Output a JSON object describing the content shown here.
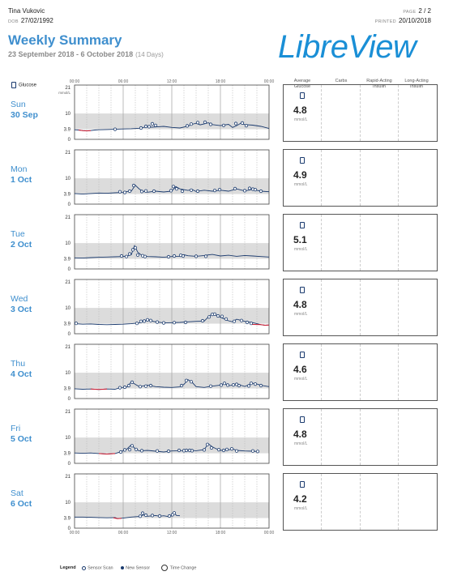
{
  "header": {
    "patient_name": "Tina Vukovic",
    "dob_label": "DOB",
    "dob": "27/02/1992",
    "page_label": "PAGE",
    "page": "2 / 2",
    "printed_label": "PRINTED",
    "printed": "20/10/2018",
    "title": "Weekly Summary",
    "date_range": "23 September 2018 - 6 October 2018",
    "days": "(14 Days)",
    "logo": "LibreView"
  },
  "columns": {
    "glucose": "Glucose",
    "avg": [
      "Average",
      "Glucose"
    ],
    "carbs": "Carbs",
    "rapid": [
      "Rapid-Acting",
      "Insulin"
    ],
    "long": [
      "Long-Acting",
      "Insulin"
    ]
  },
  "axis": {
    "y_top": "21",
    "y_unit": "mmol/L",
    "y_high": "10",
    "y_low": "3.9",
    "y_zero": "0",
    "x_ticks": [
      "00:00",
      "06:00",
      "12:00",
      "18:00",
      "00:00"
    ]
  },
  "colors": {
    "line": "#1a3a6e",
    "low": "#d0182c",
    "target": "#dcdcdc",
    "accent": "#3f8fce"
  },
  "days": [
    {
      "day": "Sun",
      "date": "30 Sep",
      "avg": "4.8",
      "unit": "mmol/L",
      "curve": [
        [
          0,
          3.7
        ],
        [
          0.5,
          3.6
        ],
        [
          1,
          3.4
        ],
        [
          1.5,
          3.3
        ],
        [
          2,
          3.4
        ],
        [
          2.5,
          3.6
        ],
        [
          3,
          3.7
        ],
        [
          4,
          3.8
        ],
        [
          5,
          3.9
        ],
        [
          6,
          4.0
        ],
        [
          7,
          4.1
        ],
        [
          8,
          4.3
        ],
        [
          8.5,
          4.6
        ],
        [
          9,
          4.9
        ],
        [
          9.5,
          4.7
        ],
        [
          10,
          4.8
        ],
        [
          11,
          5.0
        ],
        [
          12,
          4.6
        ],
        [
          13,
          4.4
        ],
        [
          14,
          5.1
        ],
        [
          14.5,
          5.8
        ],
        [
          15,
          6.2
        ],
        [
          15.5,
          5.6
        ],
        [
          16,
          6.0
        ],
        [
          16.5,
          6.4
        ],
        [
          17,
          5.7
        ],
        [
          18,
          5.3
        ],
        [
          19,
          5.8
        ],
        [
          19.5,
          4.6
        ],
        [
          20,
          5.3
        ],
        [
          20.5,
          6.2
        ],
        [
          21,
          5.7
        ],
        [
          22,
          5.5
        ],
        [
          23,
          5.0
        ],
        [
          24,
          4.2
        ]
      ],
      "low_end": 2,
      "scans": [
        [
          5,
          3.9
        ],
        [
          8.2,
          4.4
        ],
        [
          8.8,
          5.0
        ],
        [
          9.2,
          4.9
        ],
        [
          9.6,
          6.0
        ],
        [
          10,
          5.4
        ],
        [
          13.9,
          5.2
        ],
        [
          14.4,
          5.9
        ],
        [
          15.2,
          6.5
        ],
        [
          16.1,
          6.6
        ],
        [
          16.8,
          5.8
        ],
        [
          18.4,
          5.4
        ],
        [
          19.9,
          6.1
        ],
        [
          20.7,
          6.3
        ],
        [
          21.2,
          5.3
        ]
      ]
    },
    {
      "day": "Mon",
      "date": "1 Oct",
      "avg": "4.9",
      "unit": "mmol/L",
      "curve": [
        [
          0,
          4.1
        ],
        [
          1,
          3.9
        ],
        [
          2,
          4.1
        ],
        [
          3,
          4.3
        ],
        [
          4,
          4.2
        ],
        [
          5,
          4.4
        ],
        [
          6,
          4.5
        ],
        [
          6.5,
          4.9
        ],
        [
          7,
          5.0
        ],
        [
          7.5,
          7.3
        ],
        [
          8,
          5.8
        ],
        [
          8.5,
          4.9
        ],
        [
          9,
          4.6
        ],
        [
          10,
          5.0
        ],
        [
          11,
          4.7
        ],
        [
          12,
          5.0
        ],
        [
          12.5,
          6.8
        ],
        [
          13,
          5.9
        ],
        [
          14,
          5.3
        ],
        [
          14.5,
          5.7
        ],
        [
          15,
          4.9
        ],
        [
          16,
          5.4
        ],
        [
          17,
          5.0
        ],
        [
          18,
          5.4
        ],
        [
          19,
          5.0
        ],
        [
          20,
          5.9
        ],
        [
          21,
          5.1
        ],
        [
          22,
          5.7
        ],
        [
          23,
          5.0
        ],
        [
          24,
          4.8
        ]
      ],
      "low_end": 0,
      "scans": [
        [
          5.6,
          4.8
        ],
        [
          6.2,
          4.5
        ],
        [
          6.8,
          5.0
        ],
        [
          7.3,
          7.2
        ],
        [
          8.3,
          4.9
        ],
        [
          8.8,
          5.1
        ],
        [
          9.8,
          5.0
        ],
        [
          11.9,
          5.2
        ],
        [
          12.2,
          6.8
        ],
        [
          12.6,
          5.9
        ],
        [
          13.3,
          5.0
        ],
        [
          14.4,
          5.4
        ],
        [
          15.2,
          5.0
        ],
        [
          17.3,
          5.3
        ],
        [
          17.9,
          5.6
        ],
        [
          19.8,
          6.0
        ],
        [
          21.0,
          5.2
        ],
        [
          21.6,
          6.1
        ],
        [
          22.0,
          5.8
        ],
        [
          22.3,
          5.6
        ],
        [
          23.0,
          5.0
        ]
      ]
    },
    {
      "day": "Tue",
      "date": "2 Oct",
      "avg": "5.1",
      "unit": "mmol/L",
      "curve": [
        [
          0,
          4.3
        ],
        [
          1,
          4.2
        ],
        [
          2,
          4.4
        ],
        [
          3,
          4.5
        ],
        [
          4,
          4.6
        ],
        [
          5,
          4.7
        ],
        [
          6,
          4.8
        ],
        [
          6.5,
          5.0
        ],
        [
          7,
          5.5
        ],
        [
          7.4,
          9.0
        ],
        [
          7.8,
          6.5
        ],
        [
          8.2,
          5.5
        ],
        [
          8.6,
          5.0
        ],
        [
          9,
          4.8
        ],
        [
          10,
          4.7
        ],
        [
          11,
          4.5
        ],
        [
          12,
          4.8
        ],
        [
          13,
          4.9
        ],
        [
          13.5,
          5.5
        ],
        [
          14,
          5.1
        ],
        [
          15,
          4.9
        ],
        [
          16,
          5.2
        ],
        [
          17,
          5.6
        ],
        [
          18,
          5.0
        ],
        [
          19,
          5.3
        ],
        [
          20,
          4.9
        ],
        [
          21,
          5.2
        ],
        [
          22,
          5.0
        ],
        [
          23,
          4.8
        ],
        [
          24,
          4.6
        ]
      ],
      "low_end": 0,
      "scans": [
        [
          5.8,
          5.0
        ],
        [
          6.4,
          4.8
        ],
        [
          6.8,
          5.8
        ],
        [
          7.2,
          7.4
        ],
        [
          7.5,
          8.2
        ],
        [
          7.8,
          5.4
        ],
        [
          8.4,
          5.1
        ],
        [
          8.7,
          4.8
        ],
        [
          11.6,
          4.7
        ],
        [
          12.3,
          5.0
        ],
        [
          13.1,
          5.3
        ],
        [
          13.4,
          5.0
        ],
        [
          15.0,
          4.9
        ],
        [
          16.2,
          4.9
        ]
      ]
    },
    {
      "day": "Wed",
      "date": "3 Oct",
      "avg": "4.8",
      "unit": "mmol/L",
      "curve": [
        [
          0,
          3.9
        ],
        [
          1,
          3.7
        ],
        [
          2,
          3.8
        ],
        [
          3,
          3.6
        ],
        [
          4,
          3.5
        ],
        [
          5,
          3.6
        ],
        [
          6,
          3.7
        ],
        [
          7,
          3.9
        ],
        [
          8,
          4.2
        ],
        [
          8.5,
          4.7
        ],
        [
          9,
          5.2
        ],
        [
          10,
          4.6
        ],
        [
          11,
          4.2
        ],
        [
          12,
          4.3
        ],
        [
          13,
          4.4
        ],
        [
          14,
          4.6
        ],
        [
          15,
          4.8
        ],
        [
          16,
          4.9
        ],
        [
          16.5,
          6.5
        ],
        [
          17,
          7.7
        ],
        [
          17.5,
          7.1
        ],
        [
          18,
          6.4
        ],
        [
          18.5,
          5.7
        ],
        [
          19,
          5.0
        ],
        [
          19.5,
          4.6
        ],
        [
          20,
          5.6
        ],
        [
          21,
          4.8
        ],
        [
          22,
          4.3
        ],
        [
          23,
          3.5
        ],
        [
          23.5,
          3.3
        ],
        [
          24,
          3.4
        ]
      ],
      "low_end": 0,
      "scans": [
        [
          0.2,
          4.0
        ],
        [
          7.7,
          4.0
        ],
        [
          8.2,
          4.8
        ],
        [
          8.6,
          4.9
        ],
        [
          9.0,
          5.4
        ],
        [
          9.4,
          5.1
        ],
        [
          10.2,
          4.5
        ],
        [
          11.0,
          4.2
        ],
        [
          12.3,
          4.3
        ],
        [
          13.7,
          4.4
        ],
        [
          15.8,
          5.0
        ],
        [
          16.6,
          6.5
        ],
        [
          17.0,
          7.5
        ],
        [
          17.3,
          7.6
        ],
        [
          17.7,
          6.9
        ],
        [
          18.2,
          6.7
        ],
        [
          18.7,
          5.7
        ],
        [
          19.7,
          4.8
        ],
        [
          20.6,
          5.1
        ],
        [
          21.3,
          4.4
        ],
        [
          21.8,
          4.0
        ]
      ],
      "low2": [
        [
          21.9,
          3.6
        ],
        [
          23,
          3.5
        ],
        [
          23.5,
          3.3
        ],
        [
          24,
          3.4
        ]
      ]
    },
    {
      "day": "Thu",
      "date": "4 Oct",
      "avg": "4.6",
      "unit": "mmol/L",
      "curve": [
        [
          0,
          3.8
        ],
        [
          1,
          3.6
        ],
        [
          2,
          3.7
        ],
        [
          3,
          3.5
        ],
        [
          4,
          3.7
        ],
        [
          5,
          3.6
        ],
        [
          5.5,
          4.1
        ],
        [
          6,
          4.2
        ],
        [
          6.5,
          4.5
        ],
        [
          7,
          6.5
        ],
        [
          7.5,
          5.5
        ],
        [
          8,
          4.6
        ],
        [
          9,
          5.2
        ],
        [
          10,
          4.6
        ],
        [
          11,
          4.4
        ],
        [
          12,
          4.3
        ],
        [
          13,
          4.5
        ],
        [
          13.5,
          5.5
        ],
        [
          14,
          7.3
        ],
        [
          14.5,
          6.3
        ],
        [
          15,
          4.6
        ],
        [
          16,
          4.3
        ],
        [
          17,
          4.8
        ],
        [
          18,
          5.2
        ],
        [
          18.5,
          5.8
        ],
        [
          19,
          4.9
        ],
        [
          20,
          5.6
        ],
        [
          21,
          4.7
        ],
        [
          22,
          5.9
        ],
        [
          22.5,
          5.6
        ],
        [
          23,
          5.1
        ],
        [
          24,
          4.6
        ]
      ],
      "low_end": 4,
      "scans": [
        [
          5.6,
          4.2
        ],
        [
          6.2,
          4.4
        ],
        [
          6.7,
          5.0
        ],
        [
          7.1,
          6.3
        ],
        [
          8.1,
          4.6
        ],
        [
          8.8,
          4.8
        ],
        [
          9.4,
          5.0
        ],
        [
          13.2,
          5.0
        ],
        [
          13.8,
          7.0
        ],
        [
          14.4,
          6.5
        ],
        [
          16.8,
          4.8
        ],
        [
          18.1,
          5.2
        ],
        [
          18.5,
          5.9
        ],
        [
          18.9,
          5.2
        ],
        [
          19.6,
          5.3
        ],
        [
          20.0,
          5.5
        ],
        [
          20.3,
          5.0
        ],
        [
          21.5,
          4.9
        ],
        [
          21.8,
          5.9
        ],
        [
          22.3,
          5.6
        ],
        [
          23.0,
          5.0
        ]
      ]
    },
    {
      "day": "Fri",
      "date": "5 Oct",
      "avg": "4.8",
      "unit": "mmol/L",
      "curve": [
        [
          0,
          4.0
        ],
        [
          1,
          3.9
        ],
        [
          2,
          4.0
        ],
        [
          3,
          3.8
        ],
        [
          4,
          3.6
        ],
        [
          5,
          3.8
        ],
        [
          5.5,
          4.3
        ],
        [
          6,
          4.9
        ],
        [
          6.5,
          5.6
        ],
        [
          7,
          7.2
        ],
        [
          7.5,
          5.6
        ],
        [
          8,
          4.8
        ],
        [
          9,
          5.0
        ],
        [
          10,
          4.7
        ],
        [
          11,
          4.4
        ],
        [
          12,
          4.8
        ],
        [
          13,
          4.9
        ],
        [
          14,
          5.1
        ],
        [
          15,
          4.9
        ],
        [
          16,
          5.3
        ],
        [
          16.5,
          7.6
        ],
        [
          17,
          6.4
        ],
        [
          17.5,
          5.6
        ],
        [
          18,
          5.0
        ],
        [
          19,
          5.2
        ],
        [
          19.5,
          5.6
        ],
        [
          20,
          5.0
        ],
        [
          21,
          4.8
        ],
        [
          22,
          4.7
        ],
        [
          22.8,
          4.5
        ]
      ],
      "low_end": 5,
      "scans": [
        [
          5.7,
          4.4
        ],
        [
          6.2,
          5.2
        ],
        [
          6.8,
          5.3
        ],
        [
          7.1,
          6.8
        ],
        [
          7.6,
          5.4
        ],
        [
          8.3,
          4.9
        ],
        [
          10.2,
          4.8
        ],
        [
          11.6,
          4.7
        ],
        [
          12.9,
          5.0
        ],
        [
          13.5,
          4.9
        ],
        [
          13.8,
          5.0
        ],
        [
          14.2,
          5.0
        ],
        [
          14.5,
          4.9
        ],
        [
          16.0,
          5.2
        ],
        [
          16.4,
          7.3
        ],
        [
          16.9,
          6.0
        ],
        [
          17.8,
          5.3
        ],
        [
          18.4,
          5.0
        ],
        [
          18.8,
          5.4
        ],
        [
          19.4,
          5.6
        ],
        [
          20.0,
          4.8
        ],
        [
          22.0,
          4.8
        ],
        [
          22.6,
          4.6
        ]
      ]
    },
    {
      "day": "Sat",
      "date": "6 Oct",
      "avg": "4.2",
      "unit": "mmol/L",
      "curve": [
        [
          0,
          4.3
        ],
        [
          1,
          4.3
        ],
        [
          2,
          4.2
        ],
        [
          3,
          4.1
        ],
        [
          4,
          4.0
        ],
        [
          5,
          4.1
        ],
        [
          5.3,
          3.7
        ],
        [
          6,
          3.9
        ],
        [
          7,
          4.3
        ],
        [
          8,
          4.5
        ],
        [
          8.5,
          5.1
        ],
        [
          9,
          4.6
        ],
        [
          10,
          4.9
        ],
        [
          10.5,
          4.6
        ],
        [
          11,
          4.8
        ],
        [
          11.5,
          4.5
        ],
        [
          12,
          4.7
        ],
        [
          12.3,
          5.8
        ],
        [
          12.6,
          4.9
        ],
        [
          13,
          4.8
        ]
      ],
      "low_end": 0,
      "scans": [
        [
          8.1,
          4.6
        ],
        [
          8.4,
          5.8
        ],
        [
          8.8,
          5.0
        ],
        [
          9.6,
          4.9
        ],
        [
          10.5,
          4.7
        ],
        [
          11.7,
          4.7
        ],
        [
          12.1,
          5.2
        ],
        [
          12.3,
          5.9
        ]
      ],
      "low2": [
        [
          4.8,
          4.0
        ],
        [
          5.3,
          3.7
        ],
        [
          5.8,
          3.8
        ]
      ]
    }
  ]
}
